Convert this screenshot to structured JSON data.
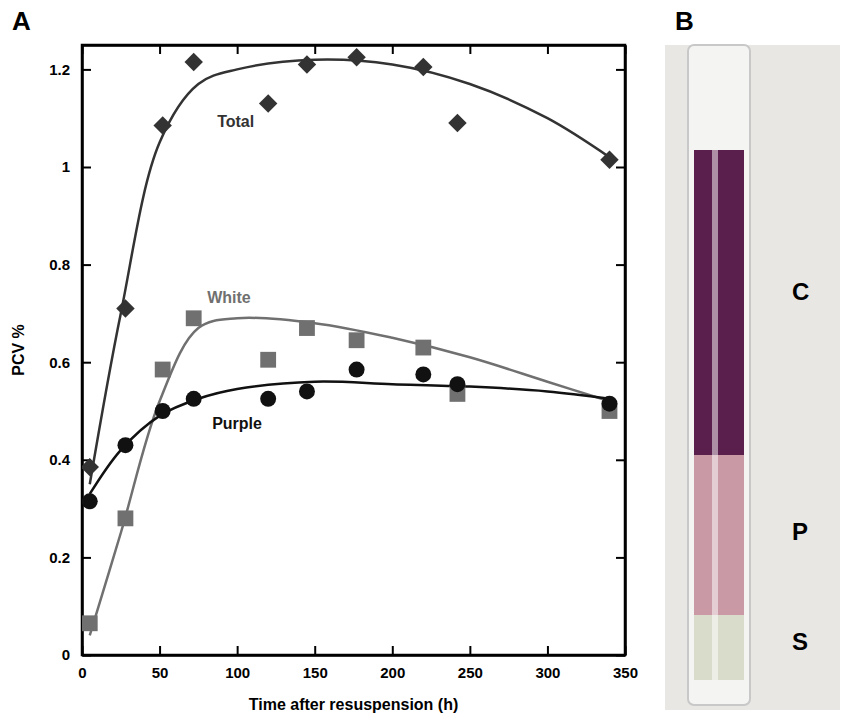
{
  "chart_data": {
    "type": "scatter",
    "panel_label": "A",
    "x_label": "Time after resuspension (h)",
    "y_label": "PCV %",
    "x": [
      5,
      28,
      52,
      72,
      120,
      145,
      177,
      220,
      242,
      340
    ],
    "fit_x": [
      5,
      25,
      50,
      75,
      100,
      150,
      200,
      250,
      300,
      340
    ],
    "series": [
      {
        "name": "Total",
        "color": "#333333",
        "marker": "diamond",
        "values": [
          0.385,
          0.71,
          1.085,
          1.215,
          1.13,
          1.21,
          1.225,
          1.205,
          1.09,
          1.015
        ],
        "fit": [
          0.35,
          0.7,
          1.05,
          1.17,
          1.2,
          1.22,
          1.21,
          1.17,
          1.1,
          1.02
        ]
      },
      {
        "name": "White",
        "color": "#707070",
        "marker": "square",
        "values": [
          0.065,
          0.28,
          0.585,
          0.69,
          0.605,
          0.67,
          0.645,
          0.63,
          0.535,
          0.5
        ],
        "fit": [
          0.04,
          0.25,
          0.52,
          0.67,
          0.69,
          0.68,
          0.65,
          0.61,
          0.56,
          0.52
        ]
      },
      {
        "name": "Purple",
        "color": "#111111",
        "marker": "circle",
        "values": [
          0.315,
          0.43,
          0.5,
          0.525,
          0.525,
          0.54,
          0.585,
          0.575,
          0.555,
          0.515
        ],
        "fit": [
          0.33,
          0.42,
          0.49,
          0.525,
          0.545,
          0.56,
          0.555,
          0.55,
          0.54,
          0.525
        ]
      }
    ],
    "xlim": [
      0,
      350
    ],
    "xticks": [
      0,
      50,
      100,
      150,
      200,
      250,
      300,
      350
    ],
    "ylim": [
      0,
      1.25
    ],
    "yticks": [
      0,
      0.2,
      0.4,
      0.6,
      0.8,
      1,
      1.2
    ],
    "grid": false
  },
  "photo": {
    "panel_label": "B",
    "labels": [
      "C",
      "P",
      "S"
    ]
  }
}
